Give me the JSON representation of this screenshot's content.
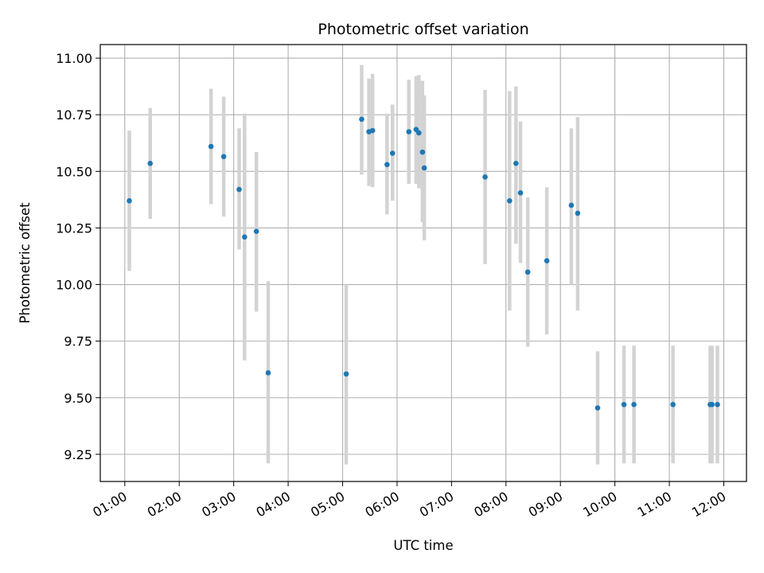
{
  "chart_data": {
    "type": "scatter",
    "title": "Photometric offset variation",
    "xlabel": "UTC time",
    "ylabel": "Photometric offset",
    "x_unit": "UTC hh:mm",
    "xlim": [
      "00:33",
      "12:25"
    ],
    "ylim": [
      9.13,
      11.06
    ],
    "grid": true,
    "x_ticks": [
      "01:00",
      "02:00",
      "03:00",
      "04:00",
      "05:00",
      "06:00",
      "07:00",
      "08:00",
      "09:00",
      "10:00",
      "11:00",
      "12:00"
    ],
    "y_ticks": [
      "9.25",
      "9.50",
      "9.75",
      "10.00",
      "10.25",
      "10.50",
      "10.75",
      "11.00"
    ],
    "series": [
      {
        "marker_color": "#1f77b4",
        "errorbar_color": "#d3d3d3",
        "points": [
          {
            "x": "01:05",
            "y": 10.37,
            "ylow": 10.06,
            "yhigh": 10.68
          },
          {
            "x": "01:28",
            "y": 10.535,
            "ylow": 10.29,
            "yhigh": 10.78
          },
          {
            "x": "02:35",
            "y": 10.61,
            "ylow": 10.355,
            "yhigh": 10.865
          },
          {
            "x": "02:49",
            "y": 10.565,
            "ylow": 10.3,
            "yhigh": 10.83
          },
          {
            "x": "03:06",
            "y": 10.42,
            "ylow": 10.155,
            "yhigh": 10.69
          },
          {
            "x": "03:12",
            "y": 10.21,
            "ylow": 9.665,
            "yhigh": 10.755
          },
          {
            "x": "03:25",
            "y": 10.235,
            "ylow": 9.88,
            "yhigh": 10.585
          },
          {
            "x": "03:38",
            "y": 9.61,
            "ylow": 9.21,
            "yhigh": 10.015
          },
          {
            "x": "05:04",
            "y": 9.605,
            "ylow": 9.205,
            "yhigh": 10.0
          },
          {
            "x": "05:21",
            "y": 10.73,
            "ylow": 10.485,
            "yhigh": 10.97
          },
          {
            "x": "05:29",
            "y": 10.675,
            "ylow": 10.435,
            "yhigh": 10.91
          },
          {
            "x": "05:33",
            "y": 10.68,
            "ylow": 10.43,
            "yhigh": 10.93
          },
          {
            "x": "05:49",
            "y": 10.53,
            "ylow": 10.31,
            "yhigh": 10.755
          },
          {
            "x": "05:55",
            "y": 10.58,
            "ylow": 10.37,
            "yhigh": 10.795
          },
          {
            "x": "06:13",
            "y": 10.675,
            "ylow": 10.445,
            "yhigh": 10.905
          },
          {
            "x": "06:21",
            "y": 10.685,
            "ylow": 10.445,
            "yhigh": 10.92
          },
          {
            "x": "06:24",
            "y": 10.67,
            "ylow": 10.425,
            "yhigh": 10.925
          },
          {
            "x": "06:28",
            "y": 10.585,
            "ylow": 10.275,
            "yhigh": 10.9
          },
          {
            "x": "06:30",
            "y": 10.515,
            "ylow": 10.195,
            "yhigh": 10.835
          },
          {
            "x": "07:37",
            "y": 10.475,
            "ylow": 10.09,
            "yhigh": 10.86
          },
          {
            "x": "08:04",
            "y": 10.37,
            "ylow": 9.885,
            "yhigh": 10.855
          },
          {
            "x": "08:11",
            "y": 10.535,
            "ylow": 10.18,
            "yhigh": 10.875
          },
          {
            "x": "08:16",
            "y": 10.405,
            "ylow": 10.095,
            "yhigh": 10.72
          },
          {
            "x": "08:24",
            "y": 10.055,
            "ylow": 9.725,
            "yhigh": 10.385
          },
          {
            "x": "08:45",
            "y": 10.105,
            "ylow": 9.78,
            "yhigh": 10.43
          },
          {
            "x": "09:12",
            "y": 10.35,
            "ylow": 10.0,
            "yhigh": 10.69
          },
          {
            "x": "09:19",
            "y": 10.315,
            "ylow": 9.885,
            "yhigh": 10.74
          },
          {
            "x": "09:41",
            "y": 9.455,
            "ylow": 9.205,
            "yhigh": 9.705
          },
          {
            "x": "10:10",
            "y": 9.47,
            "ylow": 9.21,
            "yhigh": 9.73
          },
          {
            "x": "10:21",
            "y": 9.47,
            "ylow": 9.21,
            "yhigh": 9.73
          },
          {
            "x": "11:04",
            "y": 9.47,
            "ylow": 9.21,
            "yhigh": 9.73
          },
          {
            "x": "11:45",
            "y": 9.47,
            "ylow": 9.21,
            "yhigh": 9.73
          },
          {
            "x": "11:47",
            "y": 9.47,
            "ylow": 9.21,
            "yhigh": 9.73
          },
          {
            "x": "11:53",
            "y": 9.47,
            "ylow": 9.21,
            "yhigh": 9.73
          }
        ]
      }
    ]
  }
}
